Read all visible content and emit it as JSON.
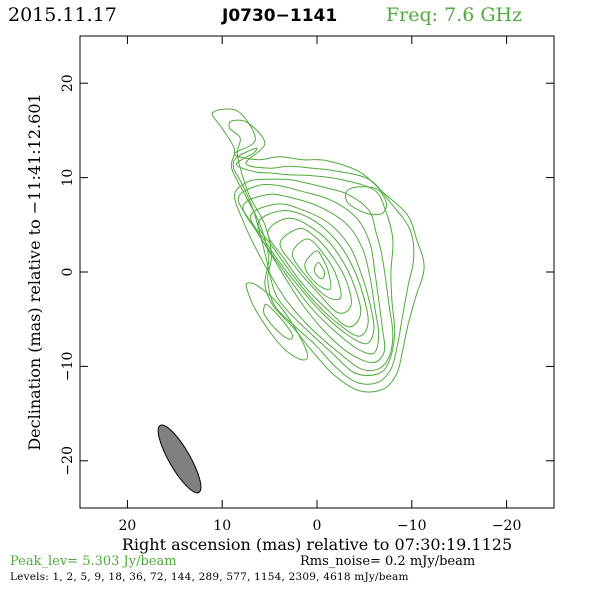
{
  "header": {
    "date": "2015.11.17",
    "source": "J0730−1141",
    "frequency": "Freq: 7.6 GHz"
  },
  "footer": {
    "peak": "Peak_lev=  5.303 Jy/beam",
    "rms": "Rms_noise=  0.2 mJy/beam",
    "levels": "Levels:   1,   2,   5,   9,   18,   36,   72,  144,  289,  577,  1154,  2309,  4618 mJy/beam"
  },
  "colors": {
    "contour": "#4faa3c",
    "beam": "#808080",
    "axis": "#000000"
  },
  "chart_data": {
    "type": "contour",
    "xlabel": "Right ascension (mas) relative to 07:30:19.1125",
    "ylabel": "Declination (mas) relative to −11:41:12.601",
    "xlim": [
      25,
      -25
    ],
    "ylim": [
      -25,
      25
    ],
    "x_ticks": [
      20,
      10,
      0,
      -10,
      -20
    ],
    "x_tick_labels": [
      "20",
      "10",
      "0",
      "−10",
      "−20"
    ],
    "y_ticks": [
      20,
      10,
      0,
      -10,
      -20
    ],
    "y_tick_labels": [
      "20",
      "10",
      "0",
      "−10",
      "−20"
    ],
    "levels_mJy": [
      1,
      2,
      5,
      9,
      18,
      36,
      72,
      144,
      289,
      577,
      1154,
      2309,
      4618
    ],
    "peak_Jy_per_beam": 5.303,
    "rms_mJy_per_beam": 0.2,
    "beam": {
      "center_x": 14.5,
      "center_y": -19.8,
      "major_mas": 8.2,
      "minor_mas": 2.2,
      "position_angle_deg": 30
    },
    "contours": [
      {
        "name": "c1",
        "points": [
          [
            11.0,
            16.9
          ],
          [
            8.3,
            17.0
          ],
          [
            6.5,
            14.0
          ],
          [
            8.7,
            12.5
          ],
          [
            6.2,
            11.9
          ],
          [
            4.0,
            12.2
          ],
          [
            1.5,
            11.9
          ],
          [
            -1.0,
            11.8
          ],
          [
            -4.5,
            10.6
          ],
          [
            -7.0,
            8.4
          ],
          [
            -9.5,
            6.1
          ],
          [
            -10.5,
            3.5
          ],
          [
            -11.3,
            0.5
          ],
          [
            -10.4,
            -2.7
          ],
          [
            -9.6,
            -5.6
          ],
          [
            -9.0,
            -8.5
          ],
          [
            -8.4,
            -10.8
          ],
          [
            -7.0,
            -12.4
          ],
          [
            -4.5,
            -12.6
          ],
          [
            -1.9,
            -11.0
          ],
          [
            0.5,
            -8.4
          ],
          [
            2.5,
            -5.9
          ],
          [
            4.6,
            -3.6
          ],
          [
            5.5,
            -1.3
          ],
          [
            5.1,
            1.5
          ],
          [
            6.0,
            5.0
          ],
          [
            7.5,
            8.0
          ],
          [
            9.0,
            11.0
          ],
          [
            8.7,
            13.0
          ],
          [
            10.0,
            15.2
          ]
        ]
      },
      {
        "name": "c2",
        "points": [
          [
            9.0,
            16.0
          ],
          [
            7.3,
            15.8
          ],
          [
            5.5,
            13.6
          ],
          [
            7.5,
            11.5
          ],
          [
            5.0,
            11.0
          ],
          [
            3.0,
            11.2
          ],
          [
            0.5,
            11.0
          ],
          [
            -2.0,
            10.7
          ],
          [
            -5.5,
            9.8
          ],
          [
            -7.7,
            7.4
          ],
          [
            -9.8,
            4.5
          ],
          [
            -10.2,
            1.5
          ],
          [
            -9.6,
            -1.5
          ],
          [
            -9.0,
            -4.8
          ],
          [
            -8.5,
            -7.7
          ],
          [
            -7.8,
            -10.3
          ],
          [
            -6.4,
            -11.7
          ],
          [
            -4.2,
            -11.7
          ],
          [
            -2.0,
            -10.1
          ],
          [
            0.3,
            -7.6
          ],
          [
            2.5,
            -5.6
          ],
          [
            4.5,
            -3.5
          ],
          [
            5.2,
            -0.8
          ],
          [
            4.8,
            1.8
          ],
          [
            5.5,
            5.0
          ],
          [
            7.0,
            7.8
          ],
          [
            7.8,
            10.0
          ],
          [
            8.4,
            12.5
          ],
          [
            8.1,
            14.2
          ],
          [
            9.2,
            15.2
          ]
        ]
      },
      {
        "name": "c3",
        "points": [
          [
            8.5,
            12.1
          ],
          [
            6.5,
            13.1
          ],
          [
            6.7,
            12.6
          ],
          [
            8.5,
            11.4
          ],
          [
            6.5,
            10.6
          ],
          [
            5.0,
            10.5
          ],
          [
            3.0,
            10.3
          ],
          [
            0.5,
            10.2
          ],
          [
            -2.5,
            9.8
          ],
          [
            -6.0,
            8.7
          ],
          [
            -7.2,
            6.6
          ],
          [
            -8.0,
            3.5
          ],
          [
            -7.8,
            0.0
          ],
          [
            -7.9,
            -3.0
          ],
          [
            -8.2,
            -6.5
          ],
          [
            -7.6,
            -9.5
          ],
          [
            -6.4,
            -10.8
          ],
          [
            -4.0,
            -10.7
          ],
          [
            -1.5,
            -8.5
          ],
          [
            1.0,
            -6.2
          ],
          [
            3.2,
            -4.0
          ],
          [
            4.5,
            -2.0
          ],
          [
            5.5,
            2.0
          ],
          [
            6.7,
            6.5
          ],
          [
            8.0,
            9.5
          ],
          [
            8.8,
            11.0
          ]
        ]
      },
      {
        "name": "c4",
        "points": [
          [
            -1.0,
            8.9
          ],
          [
            -3.3,
            8.2
          ],
          [
            -5.5,
            6.5
          ],
          [
            -6.2,
            4.3
          ],
          [
            -6.8,
            2.0
          ],
          [
            -7.2,
            -0.5
          ],
          [
            -7.6,
            -3.5
          ],
          [
            -8.0,
            -6.5
          ],
          [
            -7.6,
            -9.0
          ],
          [
            -6.4,
            -10.3
          ],
          [
            -4.5,
            -10.2
          ],
          [
            -2.0,
            -8.3
          ],
          [
            0.6,
            -6.0
          ],
          [
            3.0,
            -3.3
          ],
          [
            4.8,
            -0.5
          ],
          [
            6.3,
            2.2
          ],
          [
            7.8,
            5.4
          ],
          [
            8.7,
            8.2
          ],
          [
            7.4,
            9.5
          ],
          [
            6.0,
            9.8
          ],
          [
            3.0,
            9.8
          ],
          [
            1.5,
            9.5
          ]
        ]
      },
      {
        "name": "c5",
        "points": [
          [
            6.4,
            9.1
          ],
          [
            8.3,
            7.8
          ],
          [
            6.8,
            5.0
          ],
          [
            5.0,
            2.1
          ],
          [
            3.3,
            -0.7
          ],
          [
            1.5,
            -3.5
          ],
          [
            -0.8,
            -6.3
          ],
          [
            -3.4,
            -8.6
          ],
          [
            -5.9,
            -9.6
          ],
          [
            -7.1,
            -8.4
          ],
          [
            -6.9,
            -6.0
          ],
          [
            -6.5,
            -2.9
          ],
          [
            -6.1,
            0.0
          ],
          [
            -5.6,
            3.0
          ],
          [
            -4.2,
            5.7
          ],
          [
            -1.5,
            7.6
          ],
          [
            1.8,
            8.6
          ],
          [
            4.3,
            9.2
          ]
        ]
      },
      {
        "name": "c6",
        "points": [
          [
            5.2,
            8.2
          ],
          [
            7.8,
            7.0
          ],
          [
            6.3,
            4.2
          ],
          [
            4.5,
            1.5
          ],
          [
            2.6,
            -1.2
          ],
          [
            0.6,
            -3.8
          ],
          [
            -1.7,
            -6.1
          ],
          [
            -4.2,
            -8.1
          ],
          [
            -6.0,
            -8.6
          ],
          [
            -6.5,
            -6.6
          ],
          [
            -6.1,
            -3.8
          ],
          [
            -5.6,
            -0.6
          ],
          [
            -4.8,
            2.5
          ],
          [
            -3.2,
            5.0
          ],
          [
            -0.5,
            6.8
          ],
          [
            2.4,
            7.8
          ]
        ]
      },
      {
        "name": "c7",
        "points": [
          [
            4.2,
            7.2
          ],
          [
            7.0,
            6.0
          ],
          [
            5.5,
            3.3
          ],
          [
            3.7,
            0.7
          ],
          [
            1.7,
            -1.8
          ],
          [
            -0.5,
            -4.3
          ],
          [
            -3.0,
            -6.5
          ],
          [
            -5.2,
            -7.6
          ],
          [
            -6.0,
            -6.0
          ],
          [
            -5.5,
            -3.0
          ],
          [
            -4.6,
            0.0
          ],
          [
            -3.4,
            2.8
          ],
          [
            -1.2,
            5.2
          ],
          [
            1.6,
            6.6
          ]
        ]
      },
      {
        "name": "c8",
        "points": [
          [
            3.6,
            6.5
          ],
          [
            6.2,
            5.2
          ],
          [
            4.5,
            2.4
          ],
          [
            2.5,
            -0.4
          ],
          [
            0.4,
            -3.0
          ],
          [
            -2.0,
            -5.3
          ],
          [
            -4.4,
            -6.8
          ],
          [
            -5.4,
            -5.3
          ],
          [
            -4.8,
            -2.2
          ],
          [
            -3.6,
            0.9
          ],
          [
            -1.9,
            3.5
          ],
          [
            0.6,
            5.6
          ]
        ]
      },
      {
        "name": "c9",
        "points": [
          [
            2.8,
            5.7
          ],
          [
            5.2,
            4.2
          ],
          [
            3.4,
            1.3
          ],
          [
            1.4,
            -1.4
          ],
          [
            -0.9,
            -3.8
          ],
          [
            -3.3,
            -5.8
          ],
          [
            -4.6,
            -4.4
          ],
          [
            -3.9,
            -1.4
          ],
          [
            -2.5,
            1.5
          ],
          [
            -0.4,
            4.0
          ]
        ]
      },
      {
        "name": "c10",
        "points": [
          [
            1.9,
            4.6
          ],
          [
            3.9,
            3.0
          ],
          [
            2.1,
            0.3
          ],
          [
            0.0,
            -2.1
          ],
          [
            -2.2,
            -4.3
          ],
          [
            -3.6,
            -3.5
          ],
          [
            -3.0,
            -0.7
          ],
          [
            -1.3,
            2.1
          ],
          [
            0.3,
            3.8
          ]
        ]
      },
      {
        "name": "c11",
        "points": [
          [
            1.0,
            3.5
          ],
          [
            2.6,
            1.9
          ],
          [
            1.0,
            -0.6
          ],
          [
            -1.0,
            -2.6
          ],
          [
            -2.5,
            -2.7
          ],
          [
            -2.0,
            -0.3
          ],
          [
            -0.7,
            1.9
          ]
        ]
      },
      {
        "name": "c12",
        "points": [
          [
            0.1,
            2.2
          ],
          [
            1.3,
            0.7
          ],
          [
            0.1,
            -1.2
          ],
          [
            -1.4,
            -1.8
          ],
          [
            -1.2,
            0.0
          ],
          [
            -0.6,
            1.4
          ]
        ]
      },
      {
        "name": "c13",
        "points": [
          [
            -0.1,
            1.0
          ],
          [
            0.3,
            0.2
          ],
          [
            -0.1,
            -0.5
          ],
          [
            -0.6,
            -0.7
          ],
          [
            -0.8,
            -0.1
          ],
          [
            -0.5,
            0.6
          ]
        ]
      },
      {
        "name": "island-ne",
        "points": [
          [
            -4.2,
            9.0
          ],
          [
            -6.3,
            8.8
          ],
          [
            -7.3,
            7.4
          ],
          [
            -7.0,
            6.3
          ],
          [
            -5.7,
            6.1
          ],
          [
            -4.3,
            6.6
          ],
          [
            -3.2,
            7.4
          ],
          [
            -3.1,
            8.5
          ]
        ]
      },
      {
        "name": "island-sw-outer",
        "points": [
          [
            7.4,
            -1.2
          ],
          [
            6.2,
            -1.5
          ],
          [
            4.0,
            -3.5
          ],
          [
            2.0,
            -6.5
          ],
          [
            1.0,
            -8.8
          ],
          [
            1.6,
            -9.3
          ],
          [
            3.3,
            -8.3
          ],
          [
            5.0,
            -6.3
          ],
          [
            6.6,
            -3.8
          ],
          [
            7.3,
            -2.1
          ]
        ]
      },
      {
        "name": "island-sw-inner",
        "points": [
          [
            5.2,
            -3.5
          ],
          [
            3.5,
            -5.3
          ],
          [
            2.6,
            -6.7
          ],
          [
            3.0,
            -7.1
          ],
          [
            4.3,
            -6.1
          ],
          [
            5.5,
            -4.6
          ],
          [
            5.6,
            -3.8
          ]
        ]
      }
    ]
  }
}
